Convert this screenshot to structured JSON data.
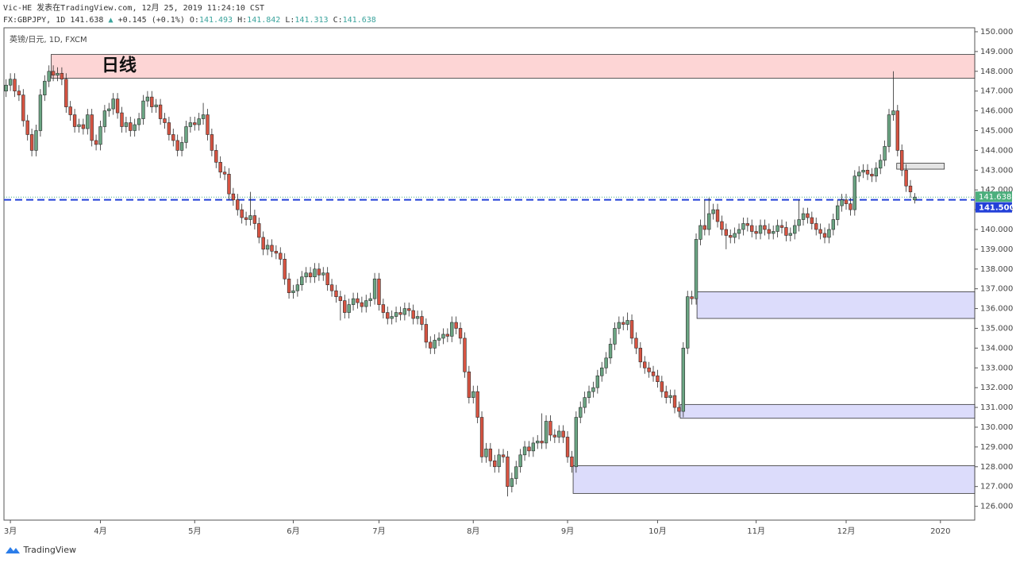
{
  "header": {
    "publisher": "Vic-HE  发表在TradingView.com, 12月 25, 2019 11:24:10 CST",
    "symbol": "FX:GBPJPY, 1D",
    "arrow": "▲",
    "change": "+0.145 (+0.1%)",
    "open_label": "O:",
    "high_label": "H:",
    "low_label": "L:",
    "close_label": "C:"
  },
  "footer": "TradingView",
  "chart_data": {
    "type": "candlestick",
    "title": "英镑/日元, 1D, FXCM",
    "annotation": "日线",
    "up_color": "#6ba583",
    "down_color": "#d75442",
    "border_color": "#2b2b2b",
    "ylim": [
      125.3,
      150.2
    ],
    "xlim": [
      -0.5,
      226
    ],
    "yticks": [
      {
        "value": 126,
        "label": "126.000"
      },
      {
        "value": 127,
        "label": "127.000"
      },
      {
        "value": 128,
        "label": "128.000"
      },
      {
        "value": 129,
        "label": "129.000"
      },
      {
        "value": 130,
        "label": "130.000"
      },
      {
        "value": 131,
        "label": "131.000"
      },
      {
        "value": 132,
        "label": "132.000"
      },
      {
        "value": 133,
        "label": "133.000"
      },
      {
        "value": 134,
        "label": "134.000"
      },
      {
        "value": 135,
        "label": "135.000"
      },
      {
        "value": 136,
        "label": "136.000"
      },
      {
        "value": 137,
        "label": "137.000"
      },
      {
        "value": 138,
        "label": "138.000"
      },
      {
        "value": 139,
        "label": "139.000"
      },
      {
        "value": 140,
        "label": "140.000"
      },
      {
        "value": 141,
        "label": "141.000"
      },
      {
        "value": 142,
        "label": "142.000"
      },
      {
        "value": 143,
        "label": "143.000"
      },
      {
        "value": 144,
        "label": "144.000"
      },
      {
        "value": 145,
        "label": "145.000"
      },
      {
        "value": 146,
        "label": "146.000"
      },
      {
        "value": 147,
        "label": "147.000"
      },
      {
        "value": 148,
        "label": "148.000"
      },
      {
        "value": 149,
        "label": "149.000"
      },
      {
        "value": 150,
        "label": "150.000"
      }
    ],
    "xticks": [
      {
        "value": 1,
        "label": "3月"
      },
      {
        "value": 22,
        "label": "4月"
      },
      {
        "value": 44,
        "label": "5月"
      },
      {
        "value": 67,
        "label": "6月"
      },
      {
        "value": 87,
        "label": "7月"
      },
      {
        "value": 109,
        "label": "8月"
      },
      {
        "value": 131,
        "label": "9月"
      },
      {
        "value": 152,
        "label": "10月"
      },
      {
        "value": 175,
        "label": "11月"
      },
      {
        "value": 196,
        "label": "12月"
      },
      {
        "value": 218,
        "label": "2020"
      }
    ],
    "hline": {
      "value": 141.5,
      "label": "141.500",
      "color": "#2340d8"
    },
    "last_color": "#4caf7d",
    "zones": [
      {
        "from": 10.5,
        "to": 226,
        "top": 148.85,
        "bottom": 147.65,
        "color": "#fdd5d5"
      },
      {
        "from": 161.2,
        "to": 226,
        "top": 136.85,
        "bottom": 135.5,
        "color": "#dcdcfb"
      },
      {
        "from": 157.3,
        "to": 226,
        "top": 131.15,
        "bottom": 130.45,
        "color": "#dcdcfb"
      },
      {
        "from": 132.3,
        "to": 226,
        "top": 128.05,
        "bottom": 126.65,
        "color": "#dcdcfb"
      },
      {
        "from": 207.8,
        "to": 218.9,
        "top": 143.35,
        "bottom": 143.05,
        "color": "#e4e4e4"
      }
    ],
    "ohlc": [
      [
        147.0,
        147.6,
        146.7,
        147.3
      ],
      [
        147.3,
        147.9,
        147.0,
        147.6
      ],
      [
        147.6,
        147.9,
        146.7,
        147.0
      ],
      [
        147.0,
        147.3,
        146.5,
        146.8
      ],
      [
        146.8,
        147.1,
        145.2,
        145.5
      ],
      [
        145.5,
        145.8,
        144.5,
        144.8
      ],
      [
        144.8,
        145.1,
        143.7,
        144.0
      ],
      [
        144.0,
        145.3,
        143.7,
        145.0
      ],
      [
        145.0,
        147.1,
        144.7,
        146.8
      ],
      [
        146.8,
        147.8,
        146.5,
        147.5
      ],
      [
        147.5,
        148.3,
        147.2,
        148.0
      ],
      [
        148.0,
        148.3,
        147.5,
        147.8
      ],
      [
        147.8,
        148.2,
        147.5,
        147.9
      ],
      [
        147.9,
        148.2,
        147.3,
        147.6
      ],
      [
        147.6,
        147.9,
        145.9,
        146.2
      ],
      [
        146.2,
        146.5,
        145.5,
        145.8
      ],
      [
        145.8,
        146.1,
        144.9,
        145.2
      ],
      [
        145.2,
        145.6,
        144.9,
        145.3
      ],
      [
        145.3,
        145.6,
        144.8,
        145.1
      ],
      [
        145.1,
        146.1,
        144.8,
        145.8
      ],
      [
        145.8,
        146.1,
        144.2,
        144.5
      ],
      [
        144.5,
        144.8,
        144.0,
        144.3
      ],
      [
        144.3,
        145.5,
        144.0,
        145.2
      ],
      [
        145.2,
        146.3,
        144.9,
        146.0
      ],
      [
        146.0,
        146.4,
        145.7,
        146.1
      ],
      [
        146.1,
        146.9,
        145.8,
        146.6
      ],
      [
        146.6,
        146.9,
        145.6,
        145.9
      ],
      [
        145.9,
        146.2,
        144.9,
        145.2
      ],
      [
        145.2,
        145.7,
        144.9,
        145.4
      ],
      [
        145.4,
        145.7,
        144.7,
        145.0
      ],
      [
        145.0,
        145.6,
        144.7,
        145.3
      ],
      [
        145.3,
        145.9,
        145.0,
        145.6
      ],
      [
        145.6,
        146.8,
        145.3,
        146.5
      ],
      [
        146.5,
        147.0,
        146.2,
        146.7
      ],
      [
        146.7,
        147.0,
        145.9,
        146.2
      ],
      [
        146.2,
        146.6,
        145.9,
        146.3
      ],
      [
        146.3,
        146.6,
        145.3,
        145.6
      ],
      [
        145.6,
        145.9,
        145.1,
        145.4
      ],
      [
        145.4,
        145.7,
        144.5,
        144.8
      ],
      [
        144.8,
        145.1,
        144.2,
        144.5
      ],
      [
        144.5,
        144.8,
        143.7,
        144.0
      ],
      [
        144.0,
        144.7,
        143.7,
        144.4
      ],
      [
        144.4,
        145.5,
        144.1,
        145.2
      ],
      [
        145.2,
        145.7,
        144.9,
        145.4
      ],
      [
        145.4,
        145.7,
        145.0,
        145.3
      ],
      [
        145.3,
        145.9,
        145.0,
        145.6
      ],
      [
        145.6,
        146.4,
        145.3,
        145.8
      ],
      [
        145.8,
        146.1,
        144.5,
        144.8
      ],
      [
        144.8,
        145.1,
        143.7,
        144.0
      ],
      [
        144.0,
        144.3,
        143.1,
        143.4
      ],
      [
        143.4,
        143.7,
        142.6,
        142.9
      ],
      [
        142.9,
        143.2,
        142.5,
        142.8
      ],
      [
        142.8,
        143.1,
        141.5,
        141.8
      ],
      [
        141.8,
        142.1,
        141.2,
        141.5
      ],
      [
        141.5,
        141.8,
        140.7,
        141.0
      ],
      [
        141.0,
        141.3,
        140.3,
        140.6
      ],
      [
        140.6,
        140.9,
        140.2,
        140.5
      ],
      [
        140.5,
        141.9,
        140.2,
        140.7
      ],
      [
        140.7,
        141.0,
        140.0,
        140.3
      ],
      [
        140.3,
        140.6,
        139.3,
        139.6
      ],
      [
        139.6,
        139.9,
        138.7,
        139.0
      ],
      [
        139.0,
        139.5,
        138.7,
        139.2
      ],
      [
        139.2,
        139.5,
        138.6,
        138.9
      ],
      [
        138.9,
        139.2,
        138.5,
        138.8
      ],
      [
        138.8,
        139.1,
        138.2,
        138.5
      ],
      [
        138.5,
        138.8,
        137.2,
        137.5
      ],
      [
        137.5,
        137.8,
        136.5,
        136.8
      ],
      [
        136.8,
        137.2,
        136.5,
        136.9
      ],
      [
        136.9,
        137.5,
        136.6,
        137.2
      ],
      [
        137.2,
        137.9,
        136.9,
        137.6
      ],
      [
        137.6,
        138.1,
        137.3,
        137.8
      ],
      [
        137.8,
        138.1,
        137.3,
        137.6
      ],
      [
        137.6,
        138.3,
        137.3,
        138.0
      ],
      [
        138.0,
        138.3,
        137.4,
        137.7
      ],
      [
        137.7,
        138.1,
        137.4,
        137.8
      ],
      [
        137.8,
        138.1,
        136.9,
        137.2
      ],
      [
        137.2,
        137.5,
        136.6,
        136.9
      ],
      [
        136.9,
        137.2,
        136.3,
        136.6
      ],
      [
        136.6,
        136.9,
        135.4,
        136.4
      ],
      [
        136.4,
        136.7,
        135.5,
        135.8
      ],
      [
        135.8,
        136.5,
        135.5,
        136.2
      ],
      [
        136.2,
        136.8,
        135.9,
        136.5
      ],
      [
        136.5,
        136.8,
        136.0,
        136.3
      ],
      [
        136.3,
        136.6,
        135.8,
        136.1
      ],
      [
        136.1,
        136.7,
        135.8,
        136.4
      ],
      [
        136.4,
        136.8,
        136.1,
        136.5
      ],
      [
        136.5,
        137.8,
        136.2,
        137.5
      ],
      [
        137.5,
        137.8,
        135.9,
        136.2
      ],
      [
        136.2,
        136.5,
        135.5,
        135.8
      ],
      [
        135.8,
        136.1,
        135.2,
        135.5
      ],
      [
        135.5,
        135.9,
        135.2,
        135.6
      ],
      [
        135.6,
        136.1,
        135.3,
        135.8
      ],
      [
        135.8,
        136.1,
        135.4,
        135.7
      ],
      [
        135.7,
        136.3,
        135.4,
        136.0
      ],
      [
        136.0,
        136.3,
        135.6,
        135.9
      ],
      [
        135.9,
        136.2,
        135.2,
        135.5
      ],
      [
        135.5,
        135.9,
        135.2,
        135.6
      ],
      [
        135.6,
        135.9,
        134.9,
        135.2
      ],
      [
        135.2,
        135.5,
        134.0,
        134.3
      ],
      [
        134.3,
        134.6,
        133.7,
        134.0
      ],
      [
        134.0,
        134.7,
        133.7,
        134.4
      ],
      [
        134.4,
        134.8,
        134.1,
        134.5
      ],
      [
        134.5,
        135.0,
        134.2,
        134.7
      ],
      [
        134.7,
        135.0,
        134.3,
        134.6
      ],
      [
        134.6,
        135.6,
        134.3,
        135.3
      ],
      [
        135.3,
        135.6,
        134.7,
        135.0
      ],
      [
        135.0,
        135.3,
        134.2,
        134.5
      ],
      [
        134.5,
        134.8,
        132.5,
        132.8
      ],
      [
        132.8,
        133.1,
        131.2,
        131.5
      ],
      [
        131.5,
        132.1,
        131.2,
        131.8
      ],
      [
        131.8,
        132.1,
        130.2,
        130.5
      ],
      [
        130.5,
        130.8,
        128.2,
        128.5
      ],
      [
        128.5,
        129.2,
        128.2,
        128.9
      ],
      [
        128.9,
        129.2,
        128.0,
        128.3
      ],
      [
        128.3,
        128.6,
        127.7,
        128.0
      ],
      [
        128.0,
        128.9,
        127.7,
        128.6
      ],
      [
        128.6,
        128.9,
        128.2,
        128.5
      ],
      [
        128.5,
        128.8,
        126.5,
        127.0
      ],
      [
        127.0,
        127.7,
        126.7,
        127.4
      ],
      [
        127.4,
        128.3,
        127.1,
        128.0
      ],
      [
        128.0,
        128.9,
        127.7,
        128.6
      ],
      [
        128.6,
        129.3,
        128.3,
        129.0
      ],
      [
        129.0,
        129.3,
        128.5,
        128.8
      ],
      [
        128.8,
        129.5,
        128.5,
        129.2
      ],
      [
        129.2,
        129.6,
        128.9,
        129.3
      ],
      [
        129.3,
        130.7,
        128.9,
        129.2
      ],
      [
        129.2,
        130.6,
        128.9,
        130.3
      ],
      [
        130.3,
        130.6,
        129.3,
        129.6
      ],
      [
        129.6,
        129.9,
        129.2,
        129.5
      ],
      [
        129.5,
        130.1,
        129.2,
        129.8
      ],
      [
        129.8,
        130.1,
        129.2,
        129.5
      ],
      [
        129.5,
        129.8,
        128.2,
        128.5
      ],
      [
        128.5,
        128.8,
        127.7,
        128.0
      ],
      [
        128.0,
        130.8,
        127.7,
        130.5
      ],
      [
        130.5,
        131.3,
        130.2,
        131.0
      ],
      [
        131.0,
        131.8,
        130.7,
        131.5
      ],
      [
        131.5,
        132.1,
        131.2,
        131.8
      ],
      [
        131.8,
        132.3,
        131.5,
        132.0
      ],
      [
        132.0,
        132.9,
        131.7,
        132.6
      ],
      [
        132.6,
        133.3,
        132.3,
        133.0
      ],
      [
        133.0,
        133.8,
        132.7,
        133.5
      ],
      [
        133.5,
        134.5,
        133.2,
        134.2
      ],
      [
        134.2,
        135.3,
        133.9,
        135.0
      ],
      [
        135.0,
        135.6,
        134.7,
        135.3
      ],
      [
        135.3,
        135.6,
        134.9,
        135.2
      ],
      [
        135.2,
        135.8,
        134.9,
        135.4
      ],
      [
        135.4,
        135.7,
        134.2,
        134.5
      ],
      [
        134.5,
        134.8,
        133.7,
        134.0
      ],
      [
        134.0,
        134.3,
        133.0,
        133.3
      ],
      [
        133.3,
        133.6,
        132.7,
        133.0
      ],
      [
        133.0,
        133.3,
        132.5,
        132.8
      ],
      [
        132.8,
        133.1,
        132.3,
        132.6
      ],
      [
        132.6,
        132.9,
        132.0,
        132.3
      ],
      [
        132.3,
        132.6,
        131.5,
        131.8
      ],
      [
        131.8,
        132.1,
        131.2,
        131.5
      ],
      [
        131.5,
        131.9,
        131.2,
        131.6
      ],
      [
        131.6,
        131.9,
        130.7,
        131.0
      ],
      [
        131.0,
        131.3,
        130.5,
        130.8
      ],
      [
        130.8,
        134.3,
        130.5,
        134.0
      ],
      [
        134.0,
        136.9,
        133.7,
        136.6
      ],
      [
        136.6,
        136.9,
        136.2,
        136.5
      ],
      [
        136.5,
        139.8,
        136.2,
        139.5
      ],
      [
        139.5,
        140.5,
        139.2,
        140.2
      ],
      [
        140.2,
        141.5,
        139.7,
        140.0
      ],
      [
        140.0,
        141.6,
        139.7,
        140.8
      ],
      [
        140.8,
        141.3,
        140.5,
        141.0
      ],
      [
        141.0,
        141.3,
        140.1,
        140.4
      ],
      [
        140.4,
        140.7,
        139.7,
        140.0
      ],
      [
        140.0,
        140.3,
        139.0,
        139.7
      ],
      [
        139.7,
        140.0,
        139.3,
        139.6
      ],
      [
        139.6,
        140.1,
        139.3,
        139.8
      ],
      [
        139.8,
        140.3,
        139.5,
        140.0
      ],
      [
        140.0,
        140.6,
        139.7,
        140.3
      ],
      [
        140.3,
        140.6,
        139.9,
        140.2
      ],
      [
        140.2,
        140.5,
        139.6,
        139.9
      ],
      [
        139.9,
        140.2,
        139.5,
        139.8
      ],
      [
        139.8,
        140.5,
        139.5,
        140.2
      ],
      [
        140.2,
        140.5,
        139.7,
        140.0
      ],
      [
        140.0,
        140.3,
        139.5,
        139.8
      ],
      [
        139.8,
        140.2,
        139.5,
        139.9
      ],
      [
        139.9,
        140.5,
        139.6,
        140.2
      ],
      [
        140.2,
        140.5,
        139.8,
        140.1
      ],
      [
        140.1,
        140.4,
        139.4,
        139.7
      ],
      [
        139.7,
        140.1,
        139.4,
        139.8
      ],
      [
        139.8,
        140.5,
        139.5,
        140.2
      ],
      [
        140.2,
        141.5,
        139.9,
        140.5
      ],
      [
        140.5,
        141.1,
        140.2,
        140.8
      ],
      [
        140.8,
        141.1,
        140.3,
        140.6
      ],
      [
        140.6,
        140.9,
        140.0,
        140.3
      ],
      [
        140.3,
        140.6,
        139.7,
        140.0
      ],
      [
        140.0,
        140.3,
        139.5,
        139.8
      ],
      [
        139.8,
        140.1,
        139.3,
        139.6
      ],
      [
        139.6,
        140.3,
        139.3,
        140.0
      ],
      [
        140.0,
        140.8,
        139.7,
        140.5
      ],
      [
        140.5,
        141.5,
        140.2,
        141.2
      ],
      [
        141.2,
        141.8,
        140.9,
        141.5
      ],
      [
        141.5,
        141.8,
        141.0,
        141.3
      ],
      [
        141.3,
        141.6,
        140.7,
        141.0
      ],
      [
        141.0,
        143.0,
        140.7,
        142.7
      ],
      [
        142.7,
        143.2,
        142.4,
        142.9
      ],
      [
        142.9,
        143.3,
        142.6,
        143.0
      ],
      [
        143.0,
        143.3,
        142.5,
        142.8
      ],
      [
        142.8,
        143.1,
        142.4,
        142.7
      ],
      [
        142.7,
        143.4,
        142.4,
        143.1
      ],
      [
        143.1,
        143.8,
        142.8,
        143.5
      ],
      [
        143.5,
        144.5,
        143.2,
        144.2
      ],
      [
        144.2,
        146.1,
        143.9,
        145.8
      ],
      [
        145.8,
        148.0,
        145.5,
        146.0
      ],
      [
        146.0,
        146.3,
        143.7,
        144.0
      ],
      [
        144.0,
        144.3,
        142.7,
        143.0
      ],
      [
        143.0,
        143.3,
        141.9,
        142.2
      ],
      [
        142.2,
        142.5,
        141.6,
        141.9
      ],
      [
        141.493,
        141.842,
        141.313,
        141.638
      ]
    ]
  }
}
